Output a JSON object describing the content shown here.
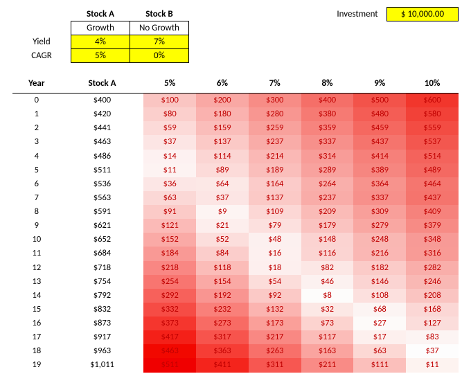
{
  "summary": {
    "headers": {
      "stock_a": "Stock A",
      "stock_b": "Stock B"
    },
    "growth_labels": {
      "a": "Growth",
      "b": "No Growth"
    },
    "row_labels": {
      "yield": "Yield",
      "cagr": "CAGR"
    },
    "yield": {
      "a": "4%",
      "b": "7%"
    },
    "cagr": {
      "a": "5%",
      "b": "0%"
    },
    "investment_label": "Investment",
    "investment_value": "$ 10,000.00"
  },
  "table": {
    "headers": [
      "Year",
      "Stock A",
      "5%",
      "6%",
      "7%",
      "8%",
      "9%",
      "10%"
    ],
    "rows": [
      {
        "year": "0",
        "stock_a": "$400",
        "cells": [
          {
            "v": "$100",
            "c": "#fac5c2"
          },
          {
            "v": "$200",
            "c": "#f9a8a4"
          },
          {
            "v": "$300",
            "c": "#f78c86"
          },
          {
            "v": "$400",
            "c": "#f56f68"
          },
          {
            "v": "$500",
            "c": "#f3534a"
          },
          {
            "v": "$600",
            "c": "#f2362c"
          }
        ]
      },
      {
        "year": "1",
        "stock_a": "$420",
        "cells": [
          {
            "v": "$80",
            "c": "#fbcfcc"
          },
          {
            "v": "$180",
            "c": "#fab2af"
          },
          {
            "v": "$280",
            "c": "#f89691"
          },
          {
            "v": "$380",
            "c": "#f67a73"
          },
          {
            "v": "$480",
            "c": "#f45d55"
          },
          {
            "v": "$580",
            "c": "#f24138"
          }
        ]
      },
      {
        "year": "2",
        "stock_a": "$441",
        "cells": [
          {
            "v": "$59",
            "c": "#fcdad8"
          },
          {
            "v": "$159",
            "c": "#fabdba"
          },
          {
            "v": "$259",
            "c": "#f8a19c"
          },
          {
            "v": "$359",
            "c": "#f7847e"
          },
          {
            "v": "$459",
            "c": "#f56860"
          },
          {
            "v": "$559",
            "c": "#f34c43"
          }
        ]
      },
      {
        "year": "3",
        "stock_a": "$463",
        "cells": [
          {
            "v": "$37",
            "c": "#fce5e4"
          },
          {
            "v": "$137",
            "c": "#fbc9c6"
          },
          {
            "v": "$237",
            "c": "#f9aca8"
          },
          {
            "v": "$337",
            "c": "#f7908b"
          },
          {
            "v": "$437",
            "c": "#f5746d"
          },
          {
            "v": "$537",
            "c": "#f3574f"
          }
        ]
      },
      {
        "year": "4",
        "stock_a": "$486",
        "cells": [
          {
            "v": "$14",
            "c": "#fdf1f1"
          },
          {
            "v": "$114",
            "c": "#fbd5d3"
          },
          {
            "v": "$214",
            "c": "#fab8b5"
          },
          {
            "v": "$314",
            "c": "#f89c98"
          },
          {
            "v": "$414",
            "c": "#f6807a"
          },
          {
            "v": "$514",
            "c": "#f4635c"
          }
        ]
      },
      {
        "year": "5",
        "stock_a": "$511",
        "cells": [
          {
            "v": "$11",
            "c": "#fdf3f2"
          },
          {
            "v": "$89",
            "c": "#fcdbd9"
          },
          {
            "v": "$189",
            "c": "#fabebb"
          },
          {
            "v": "$289",
            "c": "#f8a29e"
          },
          {
            "v": "$389",
            "c": "#f68680"
          },
          {
            "v": "$489",
            "c": "#f46962"
          }
        ]
      },
      {
        "year": "6",
        "stock_a": "$536",
        "cells": [
          {
            "v": "$36",
            "c": "#fce6e5"
          },
          {
            "v": "$64",
            "c": "#fce8e6"
          },
          {
            "v": "$164",
            "c": "#fbcbc9"
          },
          {
            "v": "$264",
            "c": "#f9afab"
          },
          {
            "v": "$364",
            "c": "#f7938d"
          },
          {
            "v": "$464",
            "c": "#f5766f"
          }
        ]
      },
      {
        "year": "7",
        "stock_a": "$563",
        "cells": [
          {
            "v": "$63",
            "c": "#fbd8d6"
          },
          {
            "v": "$37",
            "c": "#fce5e4"
          },
          {
            "v": "$137",
            "c": "#fbc9c6"
          },
          {
            "v": "$237",
            "c": "#f9aca8"
          },
          {
            "v": "$337",
            "c": "#f7908b"
          },
          {
            "v": "$437",
            "c": "#f5746d"
          }
        ]
      },
      {
        "year": "8",
        "stock_a": "$591",
        "cells": [
          {
            "v": "$91",
            "c": "#fbcac7"
          },
          {
            "v": "$9",
            "c": "#fdf4f3"
          },
          {
            "v": "$109",
            "c": "#fcd7d5"
          },
          {
            "v": "$209",
            "c": "#fabbb7"
          },
          {
            "v": "$309",
            "c": "#f89f9a"
          },
          {
            "v": "$409",
            "c": "#f6827c"
          }
        ]
      },
      {
        "year": "9",
        "stock_a": "$621",
        "cells": [
          {
            "v": "$121",
            "c": "#fbbab7"
          },
          {
            "v": "$21",
            "c": "#fdeeed"
          },
          {
            "v": "$79",
            "c": "#fce0de"
          },
          {
            "v": "$179",
            "c": "#fac3c0"
          },
          {
            "v": "$279",
            "c": "#f9a7a2"
          },
          {
            "v": "$379",
            "c": "#f78b85"
          }
        ]
      },
      {
        "year": "10",
        "stock_a": "$652",
        "cells": [
          {
            "v": "$152",
            "c": "#faaaa6"
          },
          {
            "v": "$52",
            "c": "#fcdedc"
          },
          {
            "v": "$48",
            "c": "#fcf0ef"
          },
          {
            "v": "$148",
            "c": "#fbd3d1"
          },
          {
            "v": "$248",
            "c": "#f9b7b3"
          },
          {
            "v": "$348",
            "c": "#f79a96"
          }
        ]
      },
      {
        "year": "11",
        "stock_a": "$684",
        "cells": [
          {
            "v": "$184",
            "c": "#f99995"
          },
          {
            "v": "$84",
            "c": "#fbcdcb"
          },
          {
            "v": "$16",
            "c": "#fdf0ef"
          },
          {
            "v": "$116",
            "c": "#fbd4d2"
          },
          {
            "v": "$216",
            "c": "#fab7b4"
          },
          {
            "v": "$316",
            "c": "#f89b96"
          }
        ]
      },
      {
        "year": "12",
        "stock_a": "$718",
        "cells": [
          {
            "v": "$218",
            "c": "#f98783"
          },
          {
            "v": "$118",
            "c": "#fbbcb8"
          },
          {
            "v": "$18",
            "c": "#fdefee"
          },
          {
            "v": "$82",
            "c": "#fce7e5"
          },
          {
            "v": "$182",
            "c": "#fbcbc8"
          },
          {
            "v": "$282",
            "c": "#f9aeaa"
          }
        ]
      },
      {
        "year": "13",
        "stock_a": "$754",
        "cells": [
          {
            "v": "$254",
            "c": "#f87570"
          },
          {
            "v": "$154",
            "c": "#faa9a5"
          },
          {
            "v": "$54",
            "c": "#fcddda"
          },
          {
            "v": "$46",
            "c": "#fcf1f0"
          },
          {
            "v": "$146",
            "c": "#fbd4d2"
          },
          {
            "v": "$246",
            "c": "#f9b8b4"
          }
        ]
      },
      {
        "year": "14",
        "stock_a": "$792",
        "cells": [
          {
            "v": "$292",
            "c": "#f7615b"
          },
          {
            "v": "$192",
            "c": "#f99591"
          },
          {
            "v": "$92",
            "c": "#fbc9c6"
          },
          {
            "v": "$8",
            "c": "#fdfcfb"
          },
          {
            "v": "$108",
            "c": "#fce0de"
          },
          {
            "v": "$208",
            "c": "#fac4c1"
          }
        ]
      },
      {
        "year": "15",
        "stock_a": "$832",
        "cells": [
          {
            "v": "$332",
            "c": "#f64c45"
          },
          {
            "v": "$232",
            "c": "#f9807a"
          },
          {
            "v": "$132",
            "c": "#fbb4b0"
          },
          {
            "v": "$32",
            "c": "#fce8e5"
          },
          {
            "v": "$68",
            "c": "#fcf4f3"
          },
          {
            "v": "$168",
            "c": "#fbd7d5"
          }
        ]
      },
      {
        "year": "16",
        "stock_a": "$873",
        "cells": [
          {
            "v": "$373",
            "c": "#f5362e"
          },
          {
            "v": "$273",
            "c": "#f86b64"
          },
          {
            "v": "$173",
            "c": "#fa9f99"
          },
          {
            "v": "$73",
            "c": "#fcd3cf"
          },
          {
            "v": "$27",
            "c": "#fdfaf9"
          },
          {
            "v": "$127",
            "c": "#fbdddb"
          }
        ]
      },
      {
        "year": "17",
        "stock_a": "$917",
        "cells": [
          {
            "v": "$417",
            "c": "#f42018"
          },
          {
            "v": "$317",
            "c": "#f7544d"
          },
          {
            "v": "$217",
            "c": "#f98883"
          },
          {
            "v": "$117",
            "c": "#fbbcb8"
          },
          {
            "v": "$17",
            "c": "#fdf0ee"
          },
          {
            "v": "$83",
            "c": "#fcf4f3"
          }
        ]
      },
      {
        "year": "18",
        "stock_a": "$963",
        "cells": [
          {
            "v": "$463",
            "c": "#f20800"
          },
          {
            "v": "$363",
            "c": "#f63d35"
          },
          {
            "v": "$263",
            "c": "#f8706a"
          },
          {
            "v": "$163",
            "c": "#faa49f"
          },
          {
            "v": "$63",
            "c": "#fcd8d4"
          },
          {
            "v": "$37",
            "c": "#fdfdfd"
          }
        ]
      },
      {
        "year": "19",
        "stock_a": "$1,011",
        "cells": [
          {
            "v": "$511",
            "c": "#f00000"
          },
          {
            "v": "$411",
            "c": "#f4241c"
          },
          {
            "v": "$311",
            "c": "#f75751"
          },
          {
            "v": "$211",
            "c": "#f98b86"
          },
          {
            "v": "$111",
            "c": "#fbbfbb"
          },
          {
            "v": "$11",
            "c": "#fdf3f0"
          }
        ]
      }
    ]
  }
}
